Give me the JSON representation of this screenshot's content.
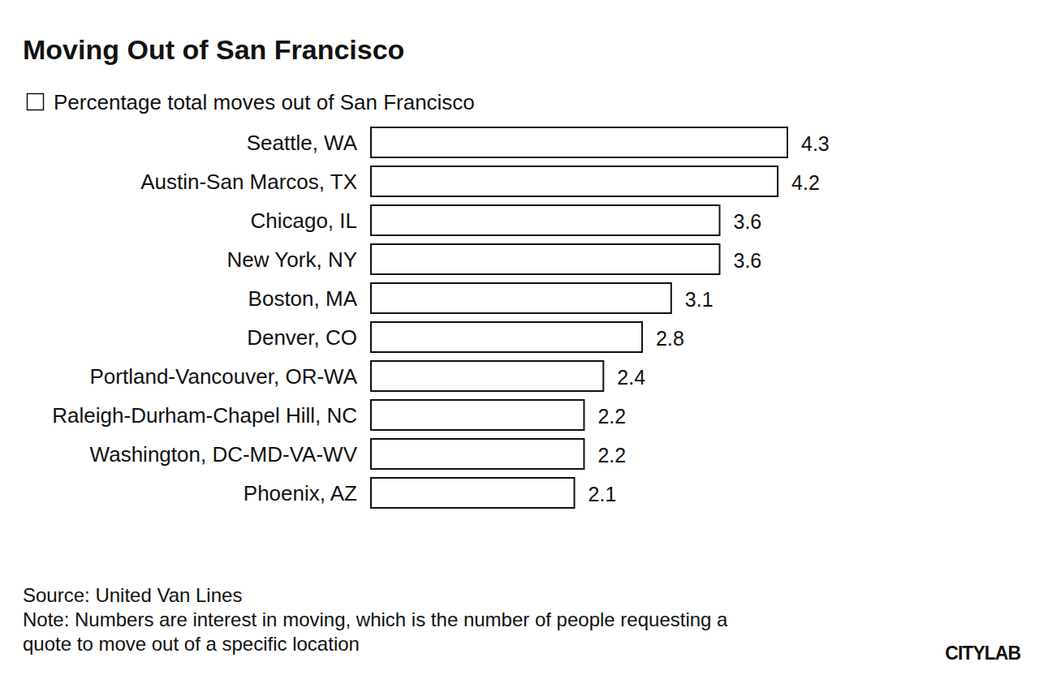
{
  "chart_data": {
    "type": "bar",
    "orientation": "horizontal",
    "title": "Moving Out of San Francisco",
    "categories": [
      "Seattle, WA",
      "Austin-San Marcos, TX",
      "Chicago, IL",
      "New York, NY",
      "Boston, MA",
      "Denver, CO",
      "Portland-Vancouver, OR-WA",
      "Raleigh-Durham-Chapel Hill, NC",
      "Washington, DC-MD-VA-WV",
      "Phoenix, AZ"
    ],
    "series": [
      {
        "name": "Percentage total moves out of San Francisco",
        "color": "#ffffff",
        "values": [
          4.3,
          4.2,
          3.6,
          3.6,
          3.1,
          2.8,
          2.4,
          2.2,
          2.2,
          2.1
        ]
      }
    ],
    "xlim": [
      0,
      4.3
    ],
    "tick_labels": false,
    "grid": false,
    "data_labels": true,
    "legend": "top-left",
    "source": "Source: United Van Lines",
    "note": [
      "Note: Numbers are interest in moving, which is the number of people requesting a",
      "quote to move out of a specific location"
    ],
    "branding": "CITYLAB"
  }
}
